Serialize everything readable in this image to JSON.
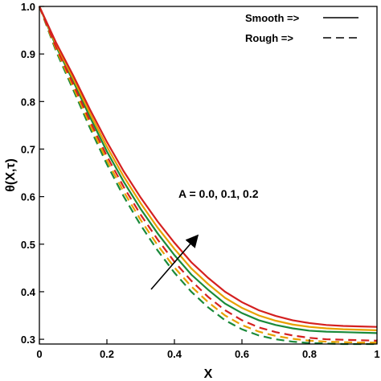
{
  "chart_data": {
    "type": "line",
    "xlabel": "X",
    "ylabel": "θ(X,τ)",
    "xlim": [
      0,
      1
    ],
    "ylim": [
      0.29,
      1.0
    ],
    "xticks": [
      0,
      0.2,
      0.4,
      0.6,
      0.8,
      1
    ],
    "xtick_labels": [
      "0",
      "0.2",
      "0.4",
      "0.6",
      "0.8",
      "1"
    ],
    "yticks": [
      0.3,
      0.4,
      0.5,
      0.6,
      0.7,
      0.8,
      0.9,
      1.0
    ],
    "ytick_labels": [
      "0.3",
      "0.4",
      "0.5",
      "0.6",
      "0.7",
      "0.8",
      "0.9",
      "1.0"
    ],
    "grid": false,
    "legend_position": "top-right",
    "legend": [
      {
        "label": "Smooth =>",
        "style": "solid"
      },
      {
        "label": "Rough   =>",
        "style": "dashed"
      }
    ],
    "annotation": "A = 0.0, 0.1, 0.2",
    "colors": {
      "A0": "#1a8a3a",
      "A01": "#e8a000",
      "A02": "#d42020"
    },
    "x": [
      0,
      0.05,
      0.1,
      0.15,
      0.2,
      0.25,
      0.3,
      0.35,
      0.4,
      0.45,
      0.5,
      0.55,
      0.6,
      0.65,
      0.7,
      0.75,
      0.8,
      0.85,
      0.9,
      0.95,
      1.0
    ],
    "series": [
      {
        "style": "solid",
        "color": "#1a8a3a",
        "values": [
          1.0,
          0.915,
          0.843,
          0.767,
          0.695,
          0.631,
          0.574,
          0.523,
          0.477,
          0.436,
          0.404,
          0.375,
          0.355,
          0.34,
          0.33,
          0.323,
          0.318,
          0.316,
          0.315,
          0.314,
          0.313
        ]
      },
      {
        "style": "solid",
        "color": "#e8a000",
        "values": [
          1.0,
          0.919,
          0.849,
          0.775,
          0.705,
          0.642,
          0.586,
          0.535,
          0.49,
          0.449,
          0.416,
          0.387,
          0.366,
          0.35,
          0.339,
          0.331,
          0.326,
          0.323,
          0.321,
          0.32,
          0.319
        ]
      },
      {
        "style": "solid",
        "color": "#d42020",
        "values": [
          1.0,
          0.923,
          0.855,
          0.783,
          0.715,
          0.653,
          0.598,
          0.548,
          0.503,
          0.462,
          0.429,
          0.4,
          0.378,
          0.361,
          0.349,
          0.34,
          0.334,
          0.33,
          0.328,
          0.327,
          0.326
        ]
      },
      {
        "style": "dashed",
        "color": "#1a8a3a",
        "values": [
          1.0,
          0.905,
          0.825,
          0.744,
          0.668,
          0.6,
          0.54,
          0.487,
          0.44,
          0.4,
          0.367,
          0.34,
          0.321,
          0.308,
          0.3,
          0.295,
          0.292,
          0.291,
          0.29,
          0.29,
          0.29
        ]
      },
      {
        "style": "dashed",
        "color": "#e8a000",
        "values": [
          1.0,
          0.909,
          0.831,
          0.751,
          0.676,
          0.61,
          0.551,
          0.498,
          0.451,
          0.411,
          0.378,
          0.35,
          0.33,
          0.316,
          0.307,
          0.301,
          0.297,
          0.295,
          0.294,
          0.293,
          0.293
        ]
      },
      {
        "style": "dashed",
        "color": "#d42020",
        "values": [
          1.0,
          0.913,
          0.837,
          0.759,
          0.685,
          0.62,
          0.562,
          0.51,
          0.463,
          0.423,
          0.389,
          0.361,
          0.34,
          0.325,
          0.315,
          0.308,
          0.303,
          0.3,
          0.299,
          0.298,
          0.297
        ]
      }
    ]
  }
}
